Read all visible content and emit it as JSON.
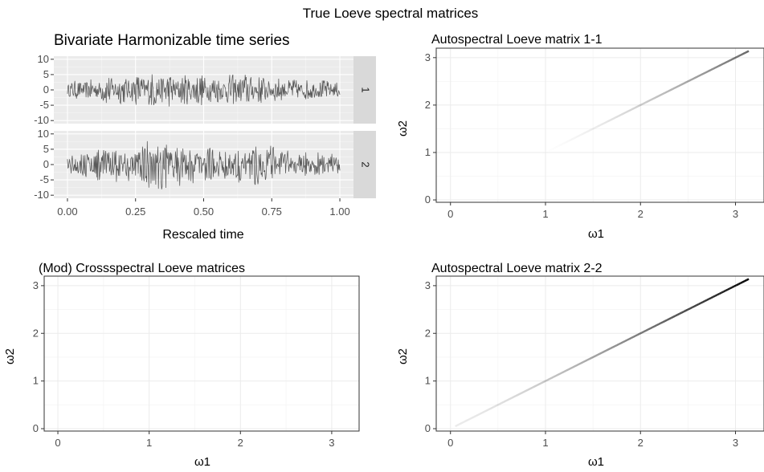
{
  "figure": {
    "title": "True Loeve spectral matrices"
  },
  "chart_data": [
    {
      "type": "line",
      "title": "Bivariate Harmonizable time series",
      "xlabel": "Rescaled time",
      "xlim": [
        -0.05,
        1.05
      ],
      "x_ticks": [
        "0.00",
        "0.25",
        "0.50",
        "0.75",
        "1.00"
      ],
      "ylim": [
        -11,
        11
      ],
      "y_ticks": [
        "-10",
        "-5",
        "0",
        "5",
        "10"
      ],
      "background": "#ebebeb",
      "grid": true,
      "line_color": "#595959",
      "strip_color": "#d9d9d9",
      "facets": [
        {
          "strip": "1",
          "amplitude_envelope": [
            [
              0.0,
              2.6
            ],
            [
              0.1,
              3.2
            ],
            [
              0.15,
              4.8
            ],
            [
              0.2,
              4.2
            ],
            [
              0.3,
              5.2
            ],
            [
              0.35,
              5.8
            ],
            [
              0.4,
              4.5
            ],
            [
              0.5,
              5.0
            ],
            [
              0.55,
              4.2
            ],
            [
              0.65,
              5.2
            ],
            [
              0.75,
              3.8
            ],
            [
              0.85,
              3.2
            ],
            [
              0.95,
              3.0
            ],
            [
              1.0,
              2.4
            ]
          ]
        },
        {
          "strip": "2",
          "amplitude_envelope": [
            [
              0.0,
              3.0
            ],
            [
              0.1,
              4.8
            ],
            [
              0.15,
              6.0
            ],
            [
              0.2,
              5.0
            ],
            [
              0.3,
              7.5
            ],
            [
              0.33,
              9.5
            ],
            [
              0.36,
              8.0
            ],
            [
              0.45,
              5.8
            ],
            [
              0.55,
              5.0
            ],
            [
              0.65,
              5.5
            ],
            [
              0.72,
              6.5
            ],
            [
              0.8,
              4.5
            ],
            [
              0.9,
              4.0
            ],
            [
              1.0,
              3.2
            ]
          ]
        }
      ]
    },
    {
      "type": "heatmap",
      "title": "Autospectral Loeve matrix 1-1",
      "xlabel": "ω1",
      "ylabel": "ω2",
      "xlim": [
        -0.15,
        3.3
      ],
      "ylim": [
        -0.05,
        3.2
      ],
      "x_ticks": [
        0,
        1,
        2,
        3
      ],
      "y_ticks": [
        0,
        1,
        2,
        3
      ],
      "grid": true,
      "diagonal": {
        "from": 0.9,
        "to": 3.14,
        "intensity_start": 0.0,
        "intensity_end": 0.6,
        "color": "#000000"
      }
    },
    {
      "type": "heatmap",
      "title": "(Mod) Crossspectral Loeve matrices",
      "xlabel": "ω1",
      "ylabel": "ω2",
      "xlim": [
        -0.15,
        3.3
      ],
      "ylim": [
        -0.05,
        3.2
      ],
      "x_ticks": [
        0,
        1,
        2,
        3
      ],
      "y_ticks": [
        0,
        1,
        2,
        3
      ],
      "grid": true
    },
    {
      "type": "heatmap",
      "title": "Autospectral Loeve matrix 2-2",
      "xlabel": "ω1",
      "ylabel": "ω2",
      "xlim": [
        -0.15,
        3.3
      ],
      "ylim": [
        -0.05,
        3.2
      ],
      "x_ticks": [
        0,
        1,
        2,
        3
      ],
      "y_ticks": [
        0,
        1,
        2,
        3
      ],
      "grid": true,
      "diagonal": {
        "from": 0.05,
        "to": 3.14,
        "intensity_start": 0.08,
        "intensity_end": 1.0,
        "color": "#000000"
      }
    }
  ]
}
